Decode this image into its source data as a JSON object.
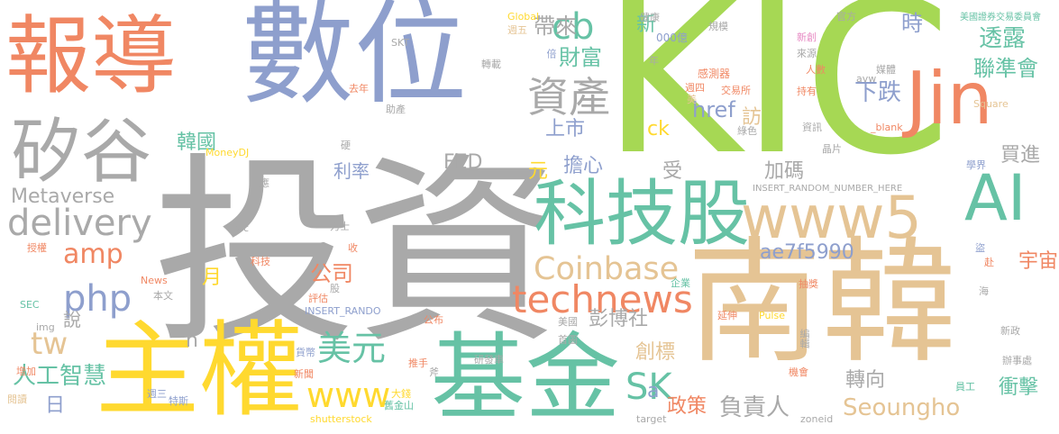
{
  "palette": {
    "gray": "#a9a9a9",
    "blue": "#8e9fcd",
    "orange": "#f08763",
    "green": "#66c2a5",
    "lime": "#a6d854",
    "yellow": "#ffd92f",
    "tan": "#e5c494",
    "pink": "#e78ac3"
  },
  "words": [
    {
      "text": "投資",
      "color": "gray"
    },
    {
      "text": "KIC",
      "color": "lime"
    },
    {
      "text": "數位",
      "color": "blue"
    },
    {
      "text": "報導",
      "color": "orange"
    },
    {
      "text": "南韓",
      "color": "tan"
    },
    {
      "text": "主權",
      "color": "yellow"
    },
    {
      "text": "基金",
      "color": "green"
    },
    {
      "text": "Jin",
      "color": "orange"
    },
    {
      "text": "矽谷",
      "color": "gray"
    },
    {
      "text": "科技股",
      "color": "green"
    },
    {
      "text": "www5",
      "color": "tan"
    },
    {
      "text": "AI",
      "color": "green"
    },
    {
      "text": "delivery",
      "color": "gray"
    },
    {
      "text": "technews",
      "color": "orange"
    },
    {
      "text": "資產",
      "color": "gray"
    },
    {
      "text": "cb",
      "color": "green"
    },
    {
      "text": "Coinbase",
      "color": "tan"
    },
    {
      "text": "www",
      "color": "yellow"
    },
    {
      "text": "php",
      "color": "blue"
    },
    {
      "text": "美元",
      "color": "green"
    },
    {
      "text": "amp",
      "color": "orange"
    },
    {
      "text": "SK",
      "color": "green"
    },
    {
      "text": "Seoungho",
      "color": "tan"
    },
    {
      "text": "tw",
      "color": "tan"
    },
    {
      "text": "財富",
      "color": "green"
    },
    {
      "text": "帶來",
      "color": "gray"
    },
    {
      "text": "下跌",
      "color": "blue"
    },
    {
      "text": "時",
      "color": "blue"
    },
    {
      "text": "透露",
      "color": "green"
    },
    {
      "text": "聯準會",
      "color": "green"
    },
    {
      "text": "href",
      "color": "blue"
    },
    {
      "text": "上市",
      "color": "blue"
    },
    {
      "text": "Metaverse",
      "color": "gray"
    },
    {
      "text": "FED",
      "color": "gray"
    },
    {
      "text": "ae7f5990",
      "color": "blue"
    },
    {
      "text": "公司",
      "color": "orange"
    },
    {
      "text": "人工智慧",
      "color": "green"
    },
    {
      "text": "負責人",
      "color": "gray"
    },
    {
      "text": "彭博社",
      "color": "gray"
    },
    {
      "text": "韓國",
      "color": "green"
    },
    {
      "text": "利率",
      "color": "blue"
    },
    {
      "text": "擔心",
      "color": "blue"
    },
    {
      "text": "加碼",
      "color": "gray"
    },
    {
      "text": "買進",
      "color": "gray"
    },
    {
      "text": "宇宙",
      "color": "orange"
    },
    {
      "text": "政策",
      "color": "orange"
    },
    {
      "text": "轉向",
      "color": "gray"
    },
    {
      "text": "衝擊",
      "color": "green"
    },
    {
      "text": "創標",
      "color": "tan"
    },
    {
      "text": "新",
      "color": "green"
    },
    {
      "text": "ck",
      "color": "yellow"
    },
    {
      "text": "訪",
      "color": "tan"
    },
    {
      "text": "受",
      "color": "gray"
    },
    {
      "text": "元",
      "color": "yellow"
    },
    {
      "text": "月",
      "color": "yellow"
    },
    {
      "text": "說",
      "color": "gray"
    },
    {
      "text": "日",
      "color": "blue"
    },
    {
      "text": "a",
      "color": "blue"
    },
    {
      "text": "n",
      "color": "gray"
    },
    {
      "text": "000億",
      "color": "blue"
    },
    {
      "text": "Global",
      "color": "yellow"
    },
    {
      "text": "SKT",
      "color": "gray"
    },
    {
      "text": "週五",
      "color": "tan"
    },
    {
      "text": "倍",
      "color": "blue"
    },
    {
      "text": "轉載",
      "color": "gray"
    },
    {
      "text": "去年",
      "color": "orange"
    },
    {
      "text": "助產",
      "color": "gray"
    },
    {
      "text": "健康",
      "color": "gray"
    },
    {
      "text": "規模",
      "color": "gray"
    },
    {
      "text": "感測器",
      "color": "orange"
    },
    {
      "text": "交易所",
      "color": "orange"
    },
    {
      "text": "週四",
      "color": "orange"
    },
    {
      "text": "美",
      "color": "tan"
    },
    {
      "text": "年",
      "color": "gray"
    },
    {
      "text": "官方",
      "color": "gray"
    },
    {
      "text": "新創",
      "color": "pink"
    },
    {
      "text": "來源",
      "color": "gray"
    },
    {
      "text": "人數",
      "color": "orange"
    },
    {
      "text": "媒體",
      "color": "gray"
    },
    {
      "text": "持有",
      "color": "orange"
    },
    {
      "text": "avw",
      "color": "gray"
    },
    {
      "text": "Square",
      "color": "tan"
    },
    {
      "text": "美國證券交易委員會",
      "color": "green"
    },
    {
      "text": "資訊",
      "color": "gray"
    },
    {
      "text": "_blank",
      "color": "orange"
    },
    {
      "text": "綠色",
      "color": "gray"
    },
    {
      "text": "晶片",
      "color": "gray"
    },
    {
      "text": "學界",
      "color": "blue"
    },
    {
      "text": "INSERT_RANDOM_NUMBER_HERE",
      "color": "gray"
    },
    {
      "text": "MoneyDJ",
      "color": "yellow"
    },
    {
      "text": "硬",
      "color": "gray"
    },
    {
      "text": "應",
      "color": "gray"
    },
    {
      "text": "力士",
      "color": "gray"
    },
    {
      "text": "src",
      "color": "gray"
    },
    {
      "text": "授權",
      "color": "orange"
    },
    {
      "text": "收",
      "color": "orange"
    },
    {
      "text": "科技",
      "color": "orange"
    },
    {
      "text": "SEC",
      "color": "green"
    },
    {
      "text": "News",
      "color": "orange"
    },
    {
      "text": "股",
      "color": "gray"
    },
    {
      "text": "評估",
      "color": "orange"
    },
    {
      "text": "本文",
      "color": "gray"
    },
    {
      "text": "INSERT_RANDO",
      "color": "blue"
    },
    {
      "text": "公布",
      "color": "orange"
    },
    {
      "text": "img",
      "color": "gray"
    },
    {
      "text": "貨幣",
      "color": "blue"
    },
    {
      "text": "研發車",
      "color": "gray"
    },
    {
      "text": "增加",
      "color": "orange"
    },
    {
      "text": "推手",
      "color": "orange"
    },
    {
      "text": "新聞",
      "color": "orange"
    },
    {
      "text": "週三",
      "color": "blue"
    },
    {
      "text": "閱讀",
      "color": "tan"
    },
    {
      "text": "特斯",
      "color": "blue"
    },
    {
      "text": "大錢",
      "color": "yellow"
    },
    {
      "text": "舊金山",
      "color": "green"
    },
    {
      "text": "shutterstock",
      "color": "yellow"
    },
    {
      "text": "首圖",
      "color": "gray"
    },
    {
      "text": "美國",
      "color": "gray"
    },
    {
      "text": "企業",
      "color": "green"
    },
    {
      "text": "延伸",
      "color": "orange"
    },
    {
      "text": "Pulse",
      "color": "yellow"
    },
    {
      "text": "抽獎",
      "color": "orange"
    },
    {
      "text": "機會",
      "color": "orange"
    },
    {
      "text": "編輯",
      "color": "gray"
    },
    {
      "text": "target",
      "color": "gray"
    },
    {
      "text": "zoneid",
      "color": "gray"
    },
    {
      "text": "員工",
      "color": "green"
    },
    {
      "text": "辦事處",
      "color": "gray"
    },
    {
      "text": "新政",
      "color": "gray"
    },
    {
      "text": "海",
      "color": "gray"
    },
    {
      "text": "盜",
      "color": "blue"
    },
    {
      "text": "赴",
      "color": "orange"
    },
    {
      "text": "斧",
      "color": "gray"
    }
  ]
}
